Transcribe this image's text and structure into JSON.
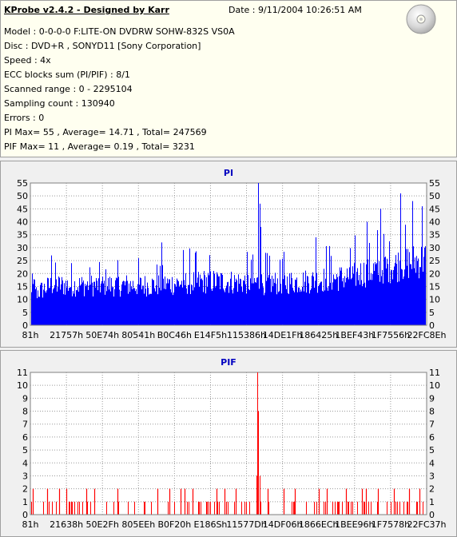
{
  "info": {
    "title": "KProbe v2.4.2 - Designed by Karr",
    "date": "Date : 9/11/2004 10:26:51 AM",
    "lines": [
      "Model : 0-0-0-0 F:LITE-ON DVDRW SOHW-832S  VS0A",
      "Disc : DVD+R , SONYD11 [Sony Corporation]",
      "Speed : 4x",
      "ECC blocks sum (PI/PIF) : 8/1",
      "Scanned range : 0 - 2295104",
      "Sampling count : 130940",
      "Errors : 0",
      "PI Max= 55 , Average= 14.71 , Total= 247569",
      "PIF Max= 11 , Average= 0.19 , Total= 3231"
    ],
    "icon": "disc-icon"
  },
  "chart_data": [
    {
      "type": "bar",
      "title": "PI",
      "color": "#0000ff",
      "ylim": [
        0,
        55
      ],
      "yticks": [
        0,
        5,
        10,
        15,
        20,
        25,
        30,
        35,
        40,
        45,
        50,
        55
      ],
      "x_tick_labels": [
        "81h",
        "21757h",
        "50E74h",
        "80541h",
        "B0C46h",
        "E14F5h",
        "115386h",
        "14DE1Fh",
        "186425h",
        "1BEF43h",
        "1F7556h",
        "22FC8Eh"
      ],
      "grid": true,
      "profile": [
        [
          0,
          15
        ],
        [
          0.05,
          20
        ],
        [
          0.15,
          20
        ],
        [
          0.3,
          20
        ],
        [
          0.45,
          22
        ],
        [
          0.6,
          21
        ],
        [
          0.7,
          22
        ],
        [
          0.8,
          24
        ],
        [
          0.9,
          29
        ],
        [
          1,
          33
        ]
      ],
      "spikes": [
        [
          0.002,
          20
        ],
        [
          0.05,
          27
        ],
        [
          0.33,
          32
        ],
        [
          0.575,
          55
        ],
        [
          0.578,
          47
        ],
        [
          0.581,
          38
        ],
        [
          0.72,
          34
        ],
        [
          0.85,
          40
        ],
        [
          0.885,
          45
        ],
        [
          0.935,
          51
        ],
        [
          0.965,
          48
        ],
        [
          0.99,
          46
        ]
      ]
    },
    {
      "type": "bar",
      "title": "PIF",
      "color": "#ff0000",
      "ylim": [
        0,
        11
      ],
      "yticks": [
        0,
        1,
        2,
        3,
        4,
        5,
        6,
        7,
        8,
        9,
        10,
        11
      ],
      "x_tick_labels": [
        "81h",
        "21638h",
        "50E2Fh",
        "805EEh",
        "B0F20h",
        "E186Sh",
        "11577Dh",
        "14DF06h",
        "1866ECh",
        "1BEE96h",
        "1F7578h",
        "22FC37h"
      ],
      "grid": true,
      "twos": [
        0.005,
        0.04,
        0.07,
        0.09,
        0.14,
        0.16,
        0.22,
        0.32,
        0.35,
        0.38,
        0.39,
        0.41,
        0.47,
        0.49,
        0.52,
        0.6,
        0.64,
        0.67,
        0.73,
        0.75,
        0.8,
        0.84,
        0.85,
        0.88,
        0.92,
        0.96,
        0.985
      ],
      "spikes": [
        [
          0.573,
          11
        ],
        [
          0.575,
          8
        ],
        [
          0.571,
          3
        ],
        [
          0.578,
          3
        ]
      ]
    }
  ]
}
